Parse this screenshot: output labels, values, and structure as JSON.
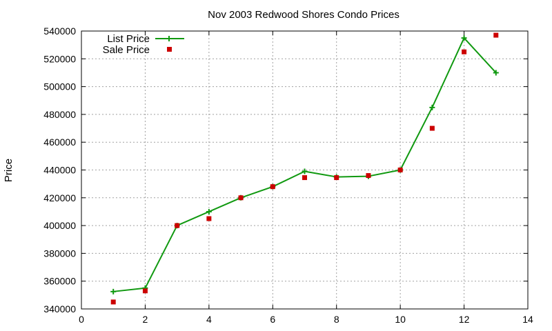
{
  "chart_data": {
    "type": "line",
    "title": "Nov 2003 Redwood Shores Condo Prices",
    "xlabel": "",
    "ylabel": "Price",
    "xlim": [
      0,
      14
    ],
    "ylim": [
      340000,
      540000
    ],
    "xticks": [
      0,
      2,
      4,
      6,
      8,
      10,
      12,
      14
    ],
    "yticks": [
      340000,
      360000,
      380000,
      400000,
      420000,
      440000,
      460000,
      480000,
      500000,
      520000,
      540000
    ],
    "grid": true,
    "legend_position": "top-left",
    "series": [
      {
        "name": "List Price",
        "style": "lines+plus-markers",
        "color": "#109910",
        "x": [
          1,
          2,
          3,
          4,
          5,
          6,
          7,
          8,
          9,
          10,
          11,
          12,
          13
        ],
        "y": [
          352500,
          355000,
          400000,
          410000,
          420000,
          428000,
          439000,
          435000,
          435500,
          440000,
          485000,
          535000,
          510000
        ]
      },
      {
        "name": "Sale Price",
        "style": "square-markers",
        "color": "#cc0000",
        "x": [
          1,
          2,
          3,
          4,
          5,
          6,
          7,
          8,
          9,
          10,
          11,
          12,
          13
        ],
        "y": [
          345000,
          353000,
          400000,
          405000,
          420000,
          428000,
          434500,
          434500,
          436000,
          440000,
          470000,
          525000,
          537000
        ]
      }
    ]
  }
}
